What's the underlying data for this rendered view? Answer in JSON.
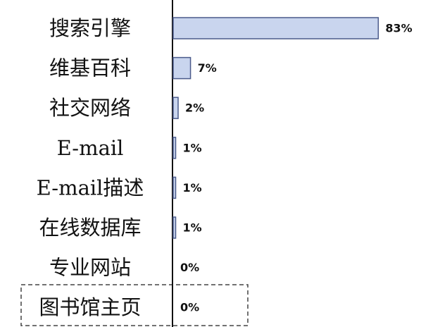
{
  "chart_data": {
    "type": "bar",
    "orientation": "horizontal",
    "categories": [
      "搜索引擎",
      "维基百科",
      "社交网络",
      "E-mail",
      "E-mail描述",
      "在线数据库",
      "专业网站",
      "图书馆主页"
    ],
    "values": [
      83,
      7,
      2,
      1,
      1,
      1,
      0,
      0
    ],
    "value_labels": [
      "83%",
      "7%",
      "2%",
      "1%",
      "1%",
      "1%",
      "0%",
      "0%"
    ],
    "color": "#c9d5ee",
    "xlim": [
      0,
      100
    ]
  }
}
